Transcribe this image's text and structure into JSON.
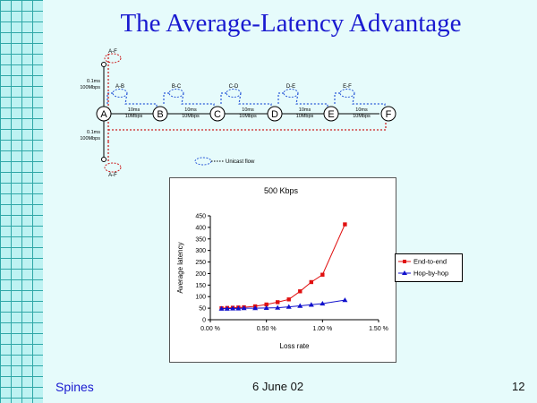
{
  "slide": {
    "title": "The Average-Latency Advantage",
    "footer_left": "Spines",
    "footer_center": "6 June 02",
    "page_number": "12"
  },
  "diagram": {
    "nodes": [
      "A",
      "B",
      "C",
      "D",
      "E",
      "F"
    ],
    "flow_labels": [
      "A-B",
      "B-C",
      "C-D",
      "D-E",
      "E-F"
    ],
    "link_labels": [
      "10ms\n10Mbps",
      "10ms\n10Mbps",
      "10ms\n10Mbps",
      "10ms\n10Mbps",
      "10ms\n10Mbps"
    ],
    "access_top": {
      "node": "A-F",
      "label": "0.1ms\n100Mbps"
    },
    "access_bottom": {
      "node": "A-F",
      "label": "0.1ms\n100Mbps"
    },
    "legend": "Unicast flow",
    "colors": {
      "dotted_blue": "#2b5ad8",
      "dotted_red": "#cc2222",
      "line": "#000000"
    }
  },
  "chart_data": {
    "type": "line",
    "title": "500 Kbps",
    "xlabel": "Loss rate",
    "ylabel": "Average latency",
    "xlim": [
      0,
      1.5
    ],
    "ylim": [
      0,
      450
    ],
    "x_ticks": [
      "0.00 %",
      "0.50 %",
      "1.00 %",
      "1.50 %"
    ],
    "y_ticks": [
      "0",
      "50",
      "100",
      "150",
      "200",
      "250",
      "300",
      "350",
      "400",
      "450"
    ],
    "legend_position": "right",
    "series": [
      {
        "name": "End-to-end",
        "color": "#e01010",
        "marker": "square",
        "x": [
          0.1,
          0.15,
          0.2,
          0.25,
          0.3,
          0.4,
          0.5,
          0.6,
          0.7,
          0.8,
          0.9,
          1.0,
          1.2
        ],
        "y": [
          50,
          51,
          52,
          53,
          54,
          58,
          66,
          76,
          88,
          123,
          163,
          195,
          413
        ]
      },
      {
        "name": "Hop-by-hop",
        "color": "#1010cc",
        "marker": "triangle",
        "x": [
          0.1,
          0.15,
          0.2,
          0.25,
          0.3,
          0.4,
          0.5,
          0.6,
          0.7,
          0.8,
          0.9,
          1.0,
          1.2
        ],
        "y": [
          48,
          48,
          49,
          49,
          50,
          50,
          51,
          52,
          56,
          60,
          65,
          70,
          85
        ]
      }
    ]
  }
}
